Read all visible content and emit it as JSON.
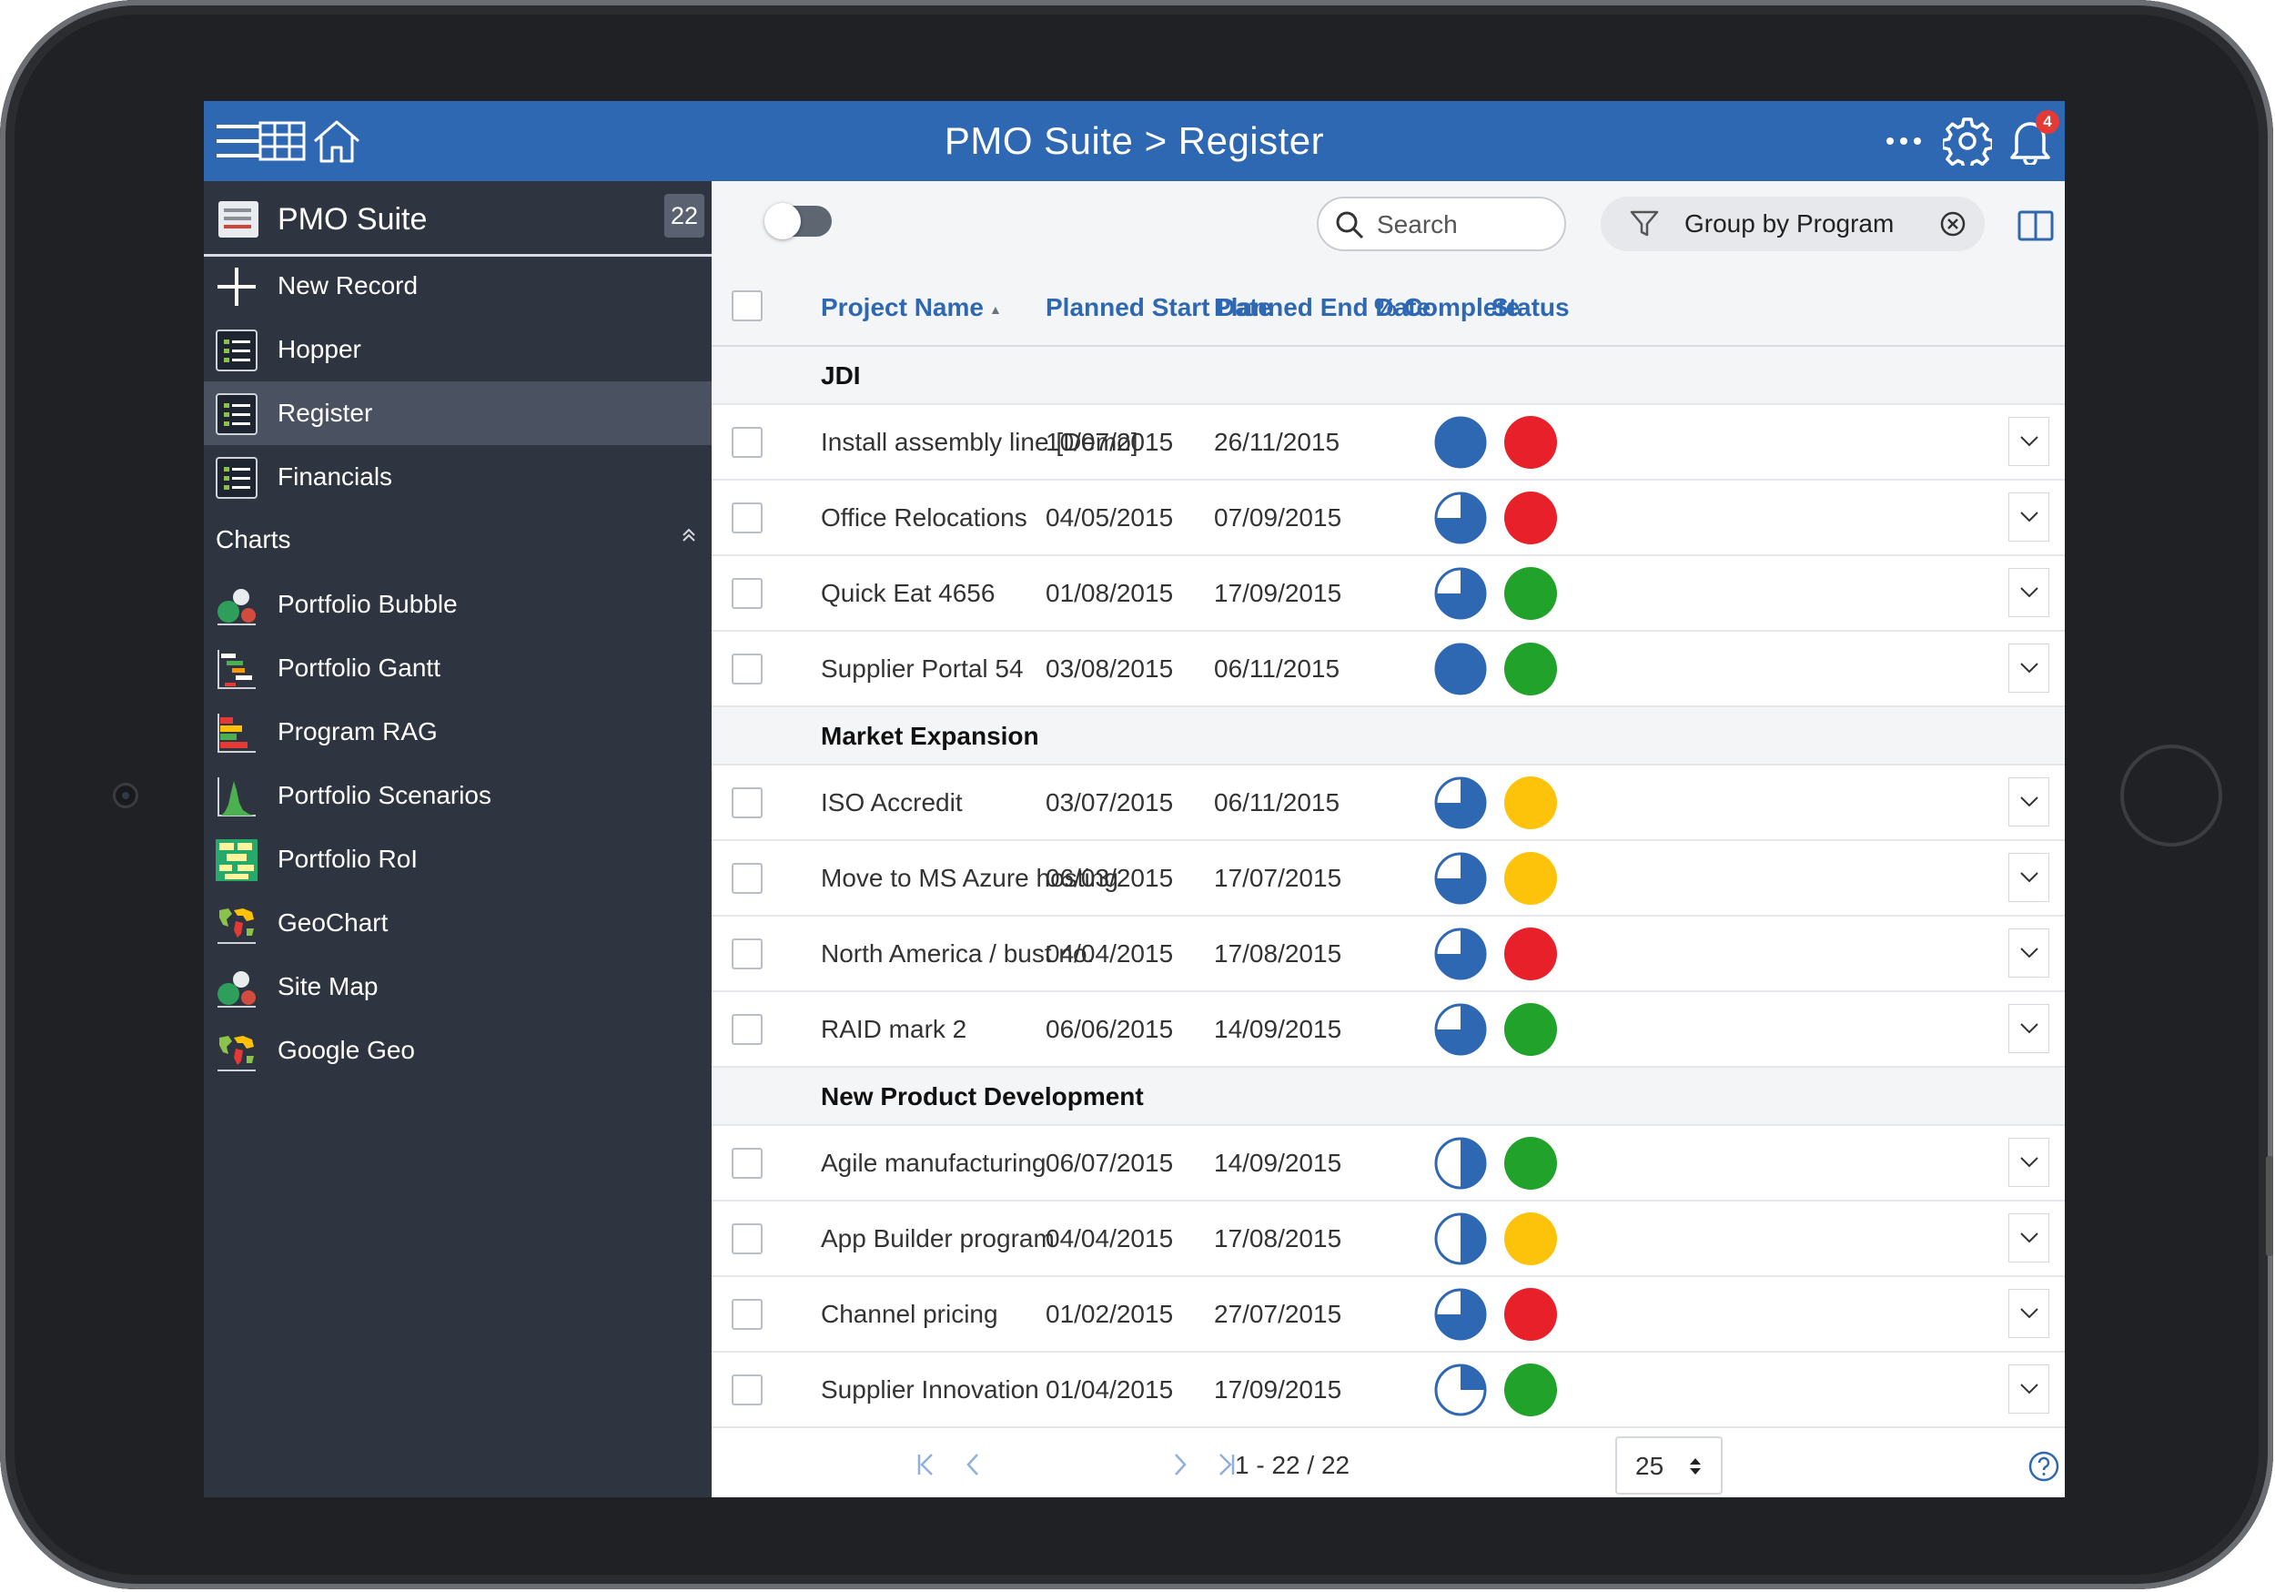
{
  "app": {
    "title": "PMO Suite > Register",
    "notification_count": "4"
  },
  "topbar_icons": [
    "menu-icon",
    "grid-icon",
    "home-icon",
    "more-icon",
    "gear-icon",
    "bell-icon"
  ],
  "sidebar": {
    "title": "PMO Suite",
    "count": "22",
    "items": [
      {
        "label": "New Record",
        "icon": "plus-icon"
      },
      {
        "label": "Hopper",
        "icon": "list-icon"
      },
      {
        "label": "Register",
        "icon": "list-icon",
        "active": true
      },
      {
        "label": "Financials",
        "icon": "list-icon"
      }
    ],
    "section_label": "Charts",
    "charts": [
      {
        "label": "Portfolio Bubble",
        "icon": "bubble-chart-icon"
      },
      {
        "label": "Portfolio Gantt",
        "icon": "gantt-chart-icon"
      },
      {
        "label": "Program RAG",
        "icon": "bar-chart-icon"
      },
      {
        "label": "Portfolio Scenarios",
        "icon": "histogram-icon"
      },
      {
        "label": "Portfolio RoI",
        "icon": "roi-chart-icon"
      },
      {
        "label": "GeoChart",
        "icon": "world-map-icon"
      },
      {
        "label": "Site Map",
        "icon": "bubble-chart-icon"
      },
      {
        "label": "Google Geo",
        "icon": "world-map-icon"
      }
    ]
  },
  "toolbar": {
    "search_placeholder": "Search",
    "group_label": "Group by Program"
  },
  "table": {
    "headers": {
      "project": "Project Name",
      "start": "Planned Start Date",
      "end": "Planned End Date",
      "complete": "% Complete",
      "status": "Status"
    },
    "groups": [
      {
        "label": "JDI",
        "rows": [
          {
            "name": "Install assembly line [Demo]",
            "start": "10/07/2015",
            "end": "26/11/2015",
            "complete": 1.0,
            "status": "red"
          },
          {
            "name": "Office Relocations",
            "start": "04/05/2015",
            "end": "07/09/2015",
            "complete": 0.75,
            "status": "red"
          },
          {
            "name": "Quick Eat 4656",
            "start": "01/08/2015",
            "end": "17/09/2015",
            "complete": 0.75,
            "status": "green"
          },
          {
            "name": "Supplier Portal 54",
            "start": "03/08/2015",
            "end": "06/11/2015",
            "complete": 1.0,
            "status": "green"
          }
        ]
      },
      {
        "label": "Market Expansion",
        "rows": [
          {
            "name": "ISO Accredit",
            "start": "03/07/2015",
            "end": "06/11/2015",
            "complete": 0.75,
            "status": "amber"
          },
          {
            "name": "Move to MS Azure hosting",
            "start": "06/03/2015",
            "end": "17/07/2015",
            "complete": 0.75,
            "status": "amber"
          },
          {
            "name": "North America / bust no.",
            "start": "04/04/2015",
            "end": "17/08/2015",
            "complete": 0.75,
            "status": "red"
          },
          {
            "name": "RAID mark 2",
            "start": "06/06/2015",
            "end": "14/09/2015",
            "complete": 0.75,
            "status": "green"
          }
        ]
      },
      {
        "label": "New Product Development",
        "rows": [
          {
            "name": "Agile manufacturing",
            "start": "06/07/2015",
            "end": "14/09/2015",
            "complete": 0.5,
            "status": "green"
          },
          {
            "name": "App Builder program",
            "start": "04/04/2015",
            "end": "17/08/2015",
            "complete": 0.5,
            "status": "amber"
          },
          {
            "name": "Channel pricing",
            "start": "01/02/2015",
            "end": "27/07/2015",
            "complete": 0.75,
            "status": "red"
          },
          {
            "name": "Supplier Innovation",
            "start": "01/04/2015",
            "end": "17/09/2015",
            "complete": 0.25,
            "status": "green"
          }
        ]
      }
    ]
  },
  "status_colors": {
    "red": "#e8202a",
    "green": "#21a22a",
    "amber": "#fdc20a"
  },
  "accent_color": "#2f68b2",
  "pager": {
    "range": "1 - 22 / 22",
    "page_size": "25"
  }
}
